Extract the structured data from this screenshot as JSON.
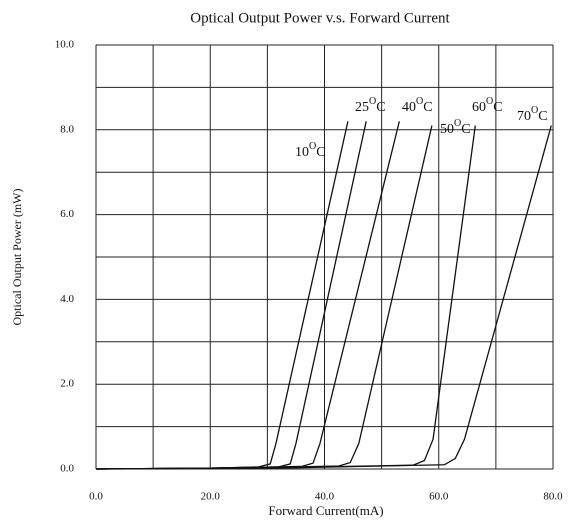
{
  "chart_data": {
    "type": "line",
    "title": "Optical Output Power v.s. Forward Current",
    "x_label": "Forward Current(mA)",
    "y_label": "Optical Output Power (mW)",
    "unit_sup": "O",
    "unit": "C",
    "xlim": [
      0,
      80
    ],
    "ylim": [
      0,
      10
    ],
    "xticks": [
      {
        "value": 0,
        "label": "0.0"
      },
      {
        "value": 20,
        "label": "20.0"
      },
      {
        "value": 40,
        "label": "40.0"
      },
      {
        "value": 60,
        "label": "60.0"
      },
      {
        "value": 80,
        "label": "80.0"
      }
    ],
    "yticks": [
      {
        "value": 0,
        "label": "0.0"
      },
      {
        "value": 2,
        "label": "2.0"
      },
      {
        "value": 4,
        "label": "4.0"
      },
      {
        "value": 6,
        "label": "6.0"
      },
      {
        "value": 8,
        "label": "8.0"
      },
      {
        "value": 10,
        "label": "10.0"
      }
    ],
    "x_minor_grid": [
      10,
      30,
      50,
      70
    ],
    "y_minor_grid": [
      1,
      3,
      5,
      7,
      9
    ],
    "grid": true,
    "color": "#111111",
    "series": [
      {
        "name": "10",
        "x": [
          0,
          20,
          28.5,
          30.5,
          31.5,
          44.1
        ],
        "values": [
          0,
          0.02,
          0.05,
          0.12,
          0.6,
          8.2
        ]
      },
      {
        "name": "25",
        "x": [
          0,
          20,
          32,
          34,
          35,
          47.3
        ],
        "values": [
          0,
          0.02,
          0.05,
          0.12,
          0.6,
          8.2
        ]
      },
      {
        "name": "40",
        "x": [
          0,
          20,
          36,
          38,
          39.2,
          53.1
        ],
        "values": [
          0,
          0.02,
          0.06,
          0.14,
          0.6,
          8.2
        ]
      },
      {
        "name": "50",
        "x": [
          0,
          25,
          42.5,
          44.5,
          46,
          58.8
        ],
        "values": [
          0,
          0.02,
          0.07,
          0.15,
          0.6,
          8.1
        ]
      },
      {
        "name": "60",
        "x": [
          0,
          30,
          55.5,
          57.5,
          59,
          66.4
        ],
        "values": [
          0,
          0.03,
          0.09,
          0.2,
          0.7,
          8.1
        ]
      },
      {
        "name": "70",
        "x": [
          0,
          35,
          61,
          62.9,
          64.5,
          79.7
        ],
        "values": [
          0,
          0.03,
          0.1,
          0.25,
          0.7,
          8.1
        ]
      }
    ]
  }
}
